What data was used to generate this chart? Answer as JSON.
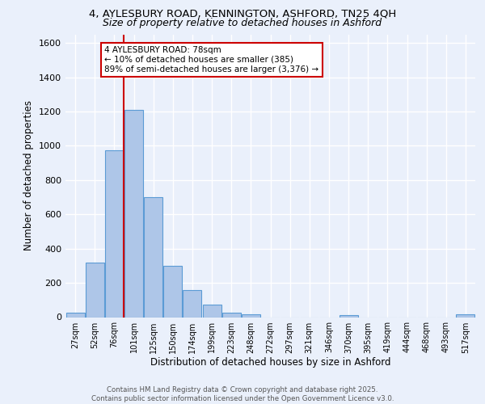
{
  "title_line1": "4, AYLESBURY ROAD, KENNINGTON, ASHFORD, TN25 4QH",
  "title_line2": "Size of property relative to detached houses in Ashford",
  "xlabel": "Distribution of detached houses by size in Ashford",
  "ylabel": "Number of detached properties",
  "categories": [
    "27sqm",
    "52sqm",
    "76sqm",
    "101sqm",
    "125sqm",
    "150sqm",
    "174sqm",
    "199sqm",
    "223sqm",
    "248sqm",
    "272sqm",
    "297sqm",
    "321sqm",
    "346sqm",
    "370sqm",
    "395sqm",
    "419sqm",
    "444sqm",
    "468sqm",
    "493sqm",
    "517sqm"
  ],
  "values": [
    25,
    320,
    975,
    1210,
    700,
    300,
    160,
    75,
    25,
    15,
    0,
    0,
    0,
    0,
    10,
    0,
    0,
    0,
    0,
    0,
    15
  ],
  "bar_color": "#aec6e8",
  "bar_edge_color": "#5b9bd5",
  "vline_x": 2.5,
  "vline_color": "#cc0000",
  "annotation_text": "4 AYLESBURY ROAD: 78sqm\n← 10% of detached houses are smaller (385)\n89% of semi-detached houses are larger (3,376) →",
  "annotation_box_color": "#ffffff",
  "annotation_box_edge": "#cc0000",
  "ylim": [
    0,
    1650
  ],
  "yticks": [
    0,
    200,
    400,
    600,
    800,
    1000,
    1200,
    1400,
    1600
  ],
  "footer_line1": "Contains HM Land Registry data © Crown copyright and database right 2025.",
  "footer_line2": "Contains public sector information licensed under the Open Government Licence v3.0.",
  "bg_color": "#eaf0fb",
  "plot_bg_color": "#eaf0fb",
  "grid_color": "#ffffff"
}
